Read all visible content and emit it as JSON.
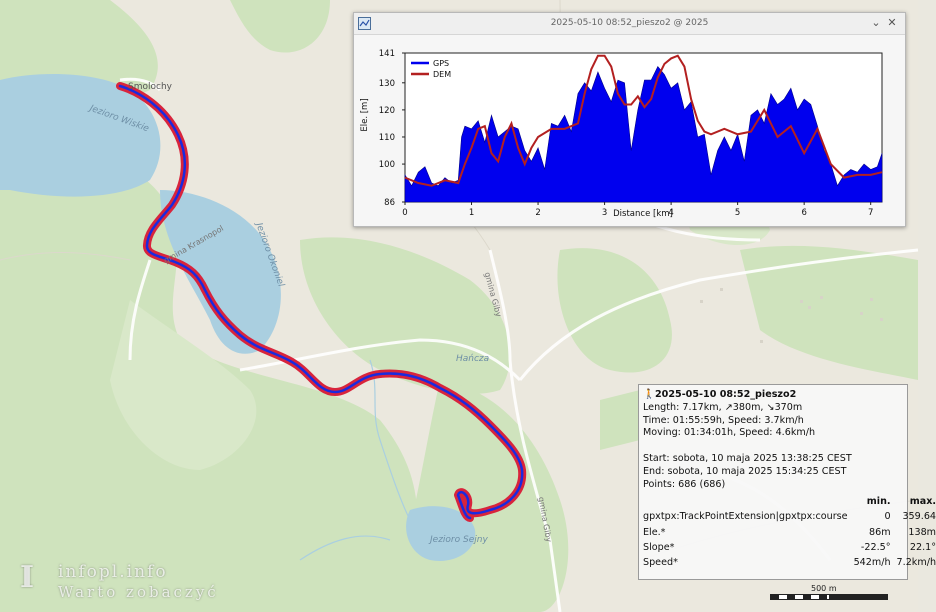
{
  "map": {
    "labels": {
      "town": "Smolochy",
      "lake_north": "Jezioro Wiskie",
      "lake_mid": "Jezioro Okoniel",
      "lake_south": "Jezioro Sejny",
      "river": "Hańcza",
      "road1": "gmina Krasnopol",
      "road2": "gmina Giby",
      "road3": "gmina Giby"
    },
    "track_color": "#1a2adf",
    "track_outline": "#d8243c",
    "scale_label": "500 m"
  },
  "elevation_window": {
    "title": "2025-05-10 08:52_pieszo2 @ 2025",
    "minimize_icon": "chevron-down-icon",
    "close_icon": "close-icon",
    "chart_data": {
      "type": "area",
      "ylabel": "Ele. [m]",
      "xlabel": "Distance [km]",
      "xlim": [
        0,
        7.17
      ],
      "ylim": [
        86,
        141
      ],
      "y_ticks": [
        86,
        100,
        110,
        120,
        130,
        141
      ],
      "x_ticks": [
        0,
        1,
        2,
        3,
        4,
        5,
        6,
        7
      ],
      "legend_position": "top-left",
      "series": [
        {
          "name": "GPS",
          "color": "#0000ee",
          "x": [
            0,
            0.1,
            0.2,
            0.3,
            0.4,
            0.5,
            0.6,
            0.7,
            0.8,
            0.85,
            0.9,
            1.0,
            1.1,
            1.2,
            1.3,
            1.4,
            1.5,
            1.6,
            1.7,
            1.8,
            1.9,
            2.0,
            2.1,
            2.2,
            2.3,
            2.4,
            2.5,
            2.6,
            2.7,
            2.8,
            2.9,
            3.0,
            3.1,
            3.2,
            3.3,
            3.4,
            3.5,
            3.6,
            3.7,
            3.8,
            3.9,
            4.0,
            4.1,
            4.2,
            4.3,
            4.4,
            4.5,
            4.6,
            4.7,
            4.8,
            4.9,
            5.0,
            5.1,
            5.2,
            5.3,
            5.4,
            5.5,
            5.6,
            5.7,
            5.8,
            5.9,
            6.0,
            6.1,
            6.2,
            6.3,
            6.4,
            6.5,
            6.6,
            6.7,
            6.8,
            6.9,
            7.0,
            7.1,
            7.17
          ],
          "values": [
            96,
            92,
            97,
            99,
            93,
            92,
            95,
            93,
            94,
            110,
            114,
            113,
            116,
            108,
            118,
            110,
            112,
            114,
            113,
            105,
            101,
            106,
            98,
            115,
            114,
            118,
            112,
            126,
            130,
            127,
            134,
            128,
            123,
            131,
            130,
            105,
            120,
            131,
            131,
            136,
            133,
            128,
            130,
            120,
            123,
            110,
            111,
            96,
            105,
            110,
            105,
            111,
            101,
            118,
            120,
            115,
            126,
            122,
            124,
            128,
            120,
            124,
            122,
            114,
            105,
            100,
            92,
            96,
            98,
            97,
            100,
            98,
            99,
            104
          ]
        },
        {
          "name": "DEM",
          "color": "#b32020",
          "x": [
            0,
            0.2,
            0.4,
            0.6,
            0.8,
            0.9,
            1.0,
            1.1,
            1.2,
            1.3,
            1.4,
            1.5,
            1.6,
            1.7,
            1.8,
            1.9,
            2.0,
            2.2,
            2.4,
            2.6,
            2.7,
            2.8,
            2.9,
            3.0,
            3.1,
            3.2,
            3.3,
            3.4,
            3.5,
            3.6,
            3.7,
            3.8,
            3.9,
            4.0,
            4.1,
            4.2,
            4.3,
            4.4,
            4.5,
            4.6,
            4.8,
            5.0,
            5.2,
            5.4,
            5.6,
            5.8,
            6.0,
            6.2,
            6.4,
            6.6,
            6.8,
            7.0,
            7.17
          ],
          "values": [
            95,
            93,
            92,
            94,
            93,
            100,
            106,
            113,
            114,
            104,
            101,
            110,
            115,
            106,
            100,
            106,
            110,
            113,
            113,
            115,
            126,
            135,
            140,
            140,
            136,
            126,
            122,
            122,
            125,
            121,
            124,
            132,
            137,
            139,
            140,
            136,
            124,
            116,
            112,
            111,
            113,
            111,
            112,
            120,
            110,
            114,
            104,
            113,
            100,
            95,
            96,
            96,
            97
          ]
        }
      ],
      "water_level": 91
    }
  },
  "info_box": {
    "title": "2025-05-10 08:52_pieszo2",
    "length": "Length: 7.17km, ↗380m, ↘370m",
    "time": "Time: 01:55:59h, Speed: 3.7km/h",
    "moving": "Moving: 01:34:01h, Speed: 4.6km/h",
    "start": "Start: sobota, 10 maja 2025 13:38:25 CEST",
    "end": "End: sobota, 10 maja 2025 15:34:25 CEST",
    "points": "Points: 686 (686)",
    "table": {
      "header_min": "min.",
      "header_max": "max.",
      "rows": [
        {
          "label": "gpxtpx:TrackPointExtension|gpxtpx:course",
          "min": "0",
          "max": "359.64"
        },
        {
          "label": "Ele.*",
          "min": "86m",
          "max": "138m"
        },
        {
          "label": "Slope*",
          "min": "-22.5°",
          "max": "22.1°"
        },
        {
          "label": "Speed*",
          "min": "542m/h",
          "max": "7.2km/h"
        }
      ]
    }
  },
  "watermark": {
    "logo": "I",
    "line1": "infopl.info",
    "line2": "Warto zobaczyć"
  }
}
